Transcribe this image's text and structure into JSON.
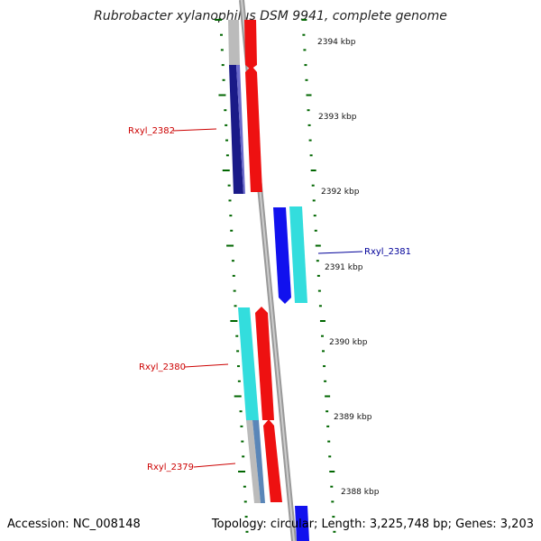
{
  "title": "Rubrobacter xylanophilus DSM 9941, complete genome",
  "footer": {
    "accession_label": "Accession: NC_008148",
    "info": "Topology: circular; Length: 3,225,748 bp; Genes: 3,203"
  },
  "ruler": {
    "unit": "kbp",
    "ticks": [
      "2394 kbp",
      "2393 kbp",
      "2392 kbp",
      "2391 kbp",
      "2390 kbp",
      "2389 kbp",
      "2388 kbp"
    ]
  },
  "genes": [
    {
      "id": "Rxyl_2382",
      "strand": "reverse",
      "start_kbp": 2392.05,
      "end_kbp": 2393.75,
      "label_color": "#cc0000"
    },
    {
      "id": "Rxyl_2381",
      "strand": "forward",
      "start_kbp": 2390.7,
      "end_kbp": 2392.0,
      "label_color": "#000099"
    },
    {
      "id": "Rxyl_2380",
      "strand": "reverse",
      "start_kbp": 2389.0,
      "end_kbp": 2390.5,
      "label_color": "#cc0000"
    },
    {
      "id": "Rxyl_2379",
      "strand": "reverse",
      "start_kbp": 2387.95,
      "end_kbp": 2389.0,
      "label_color": "#cc0000"
    }
  ],
  "colors": {
    "track_cds_red": "#ee1111",
    "track_cds_blue": "#1111ee",
    "track_cds_navy": "#111177",
    "track_cyan": "#33dddd",
    "track_gray": "#bbbbbb",
    "backbone": "#888888",
    "ruler_ticks": "#006600"
  }
}
